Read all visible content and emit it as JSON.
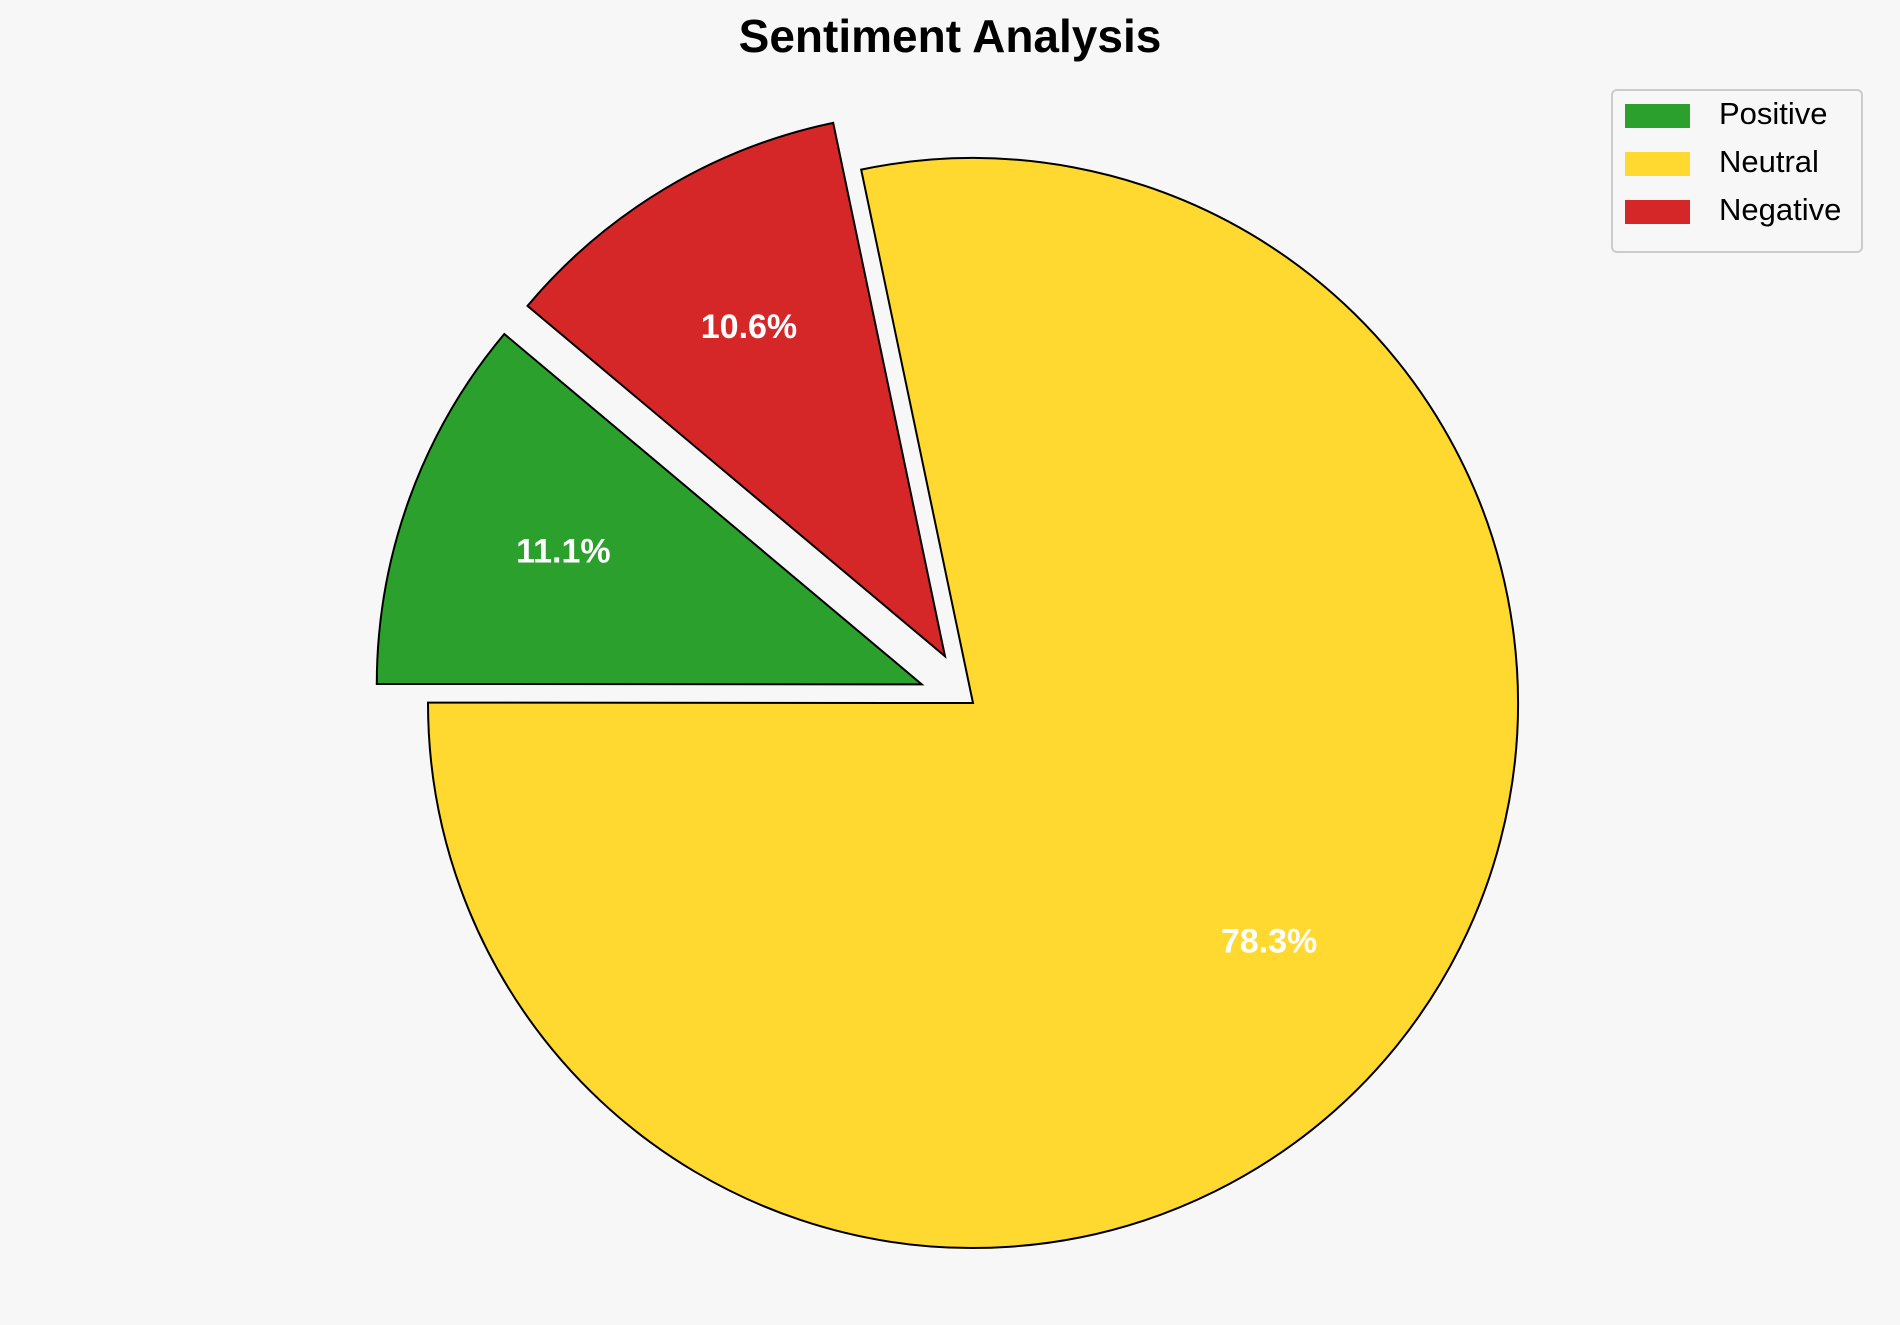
{
  "chart_data": {
    "type": "pie",
    "title": "Sentiment Analysis",
    "categories": [
      "Positive",
      "Neutral",
      "Negative"
    ],
    "values": [
      11.1,
      78.3,
      10.6
    ],
    "value_labels": [
      "11.1%",
      "78.3%",
      "10.6%"
    ],
    "colors": [
      "#2ca02c",
      "#ffd92f",
      "#d62728"
    ],
    "explode": [
      0.1,
      0,
      0.1
    ],
    "startangle": 140,
    "legend": "upper right"
  }
}
